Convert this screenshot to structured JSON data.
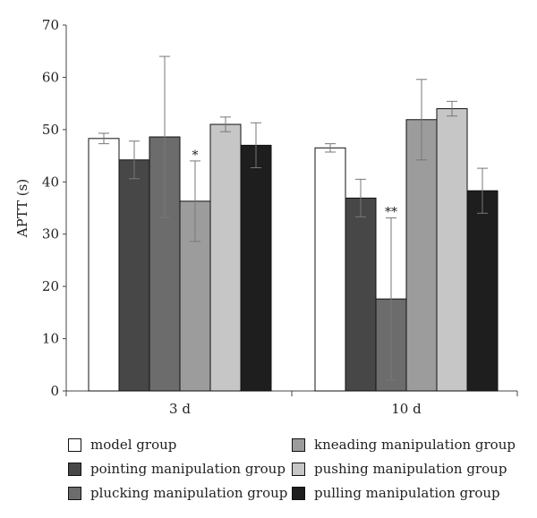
{
  "chart_data": {
    "type": "bar",
    "ylabel": "APTT (s)",
    "ylim": [
      0,
      70
    ],
    "yticks": [
      "0",
      "10",
      "20",
      "30",
      "40",
      "50",
      "60",
      "70"
    ],
    "grid": false,
    "legend_position": "bottom",
    "categories": [
      "3 d",
      "10 d"
    ],
    "series": [
      {
        "name": "model group",
        "color": "#ffffff",
        "values": [
          48.3,
          46.5
        ],
        "err": [
          1.0,
          0.8
        ]
      },
      {
        "name": "pointing manipulation group",
        "color": "#474747",
        "values": [
          44.2,
          36.9
        ],
        "err": [
          3.6,
          3.6
        ]
      },
      {
        "name": "plucking manipulation group",
        "color": "#6c6c6c",
        "values": [
          48.6,
          17.6
        ],
        "err": [
          15.4,
          15.5
        ]
      },
      {
        "name": "kneading manipulation group",
        "color": "#9c9c9c",
        "values": [
          36.3,
          51.9
        ],
        "err": [
          7.7,
          7.7
        ]
      },
      {
        "name": "pushing manipulation group",
        "color": "#c6c6c6",
        "values": [
          51.0,
          54.0
        ],
        "err": [
          1.4,
          1.4
        ]
      },
      {
        "name": "pulling manipulation group",
        "color": "#1e1e1e",
        "values": [
          47.0,
          38.3
        ],
        "err": [
          4.3,
          4.3
        ]
      }
    ],
    "annotations": [
      {
        "text": "*",
        "category": "3 d",
        "series": "kneading manipulation group"
      },
      {
        "text": "**",
        "category": "10 d",
        "series": "plucking manipulation group"
      }
    ]
  }
}
